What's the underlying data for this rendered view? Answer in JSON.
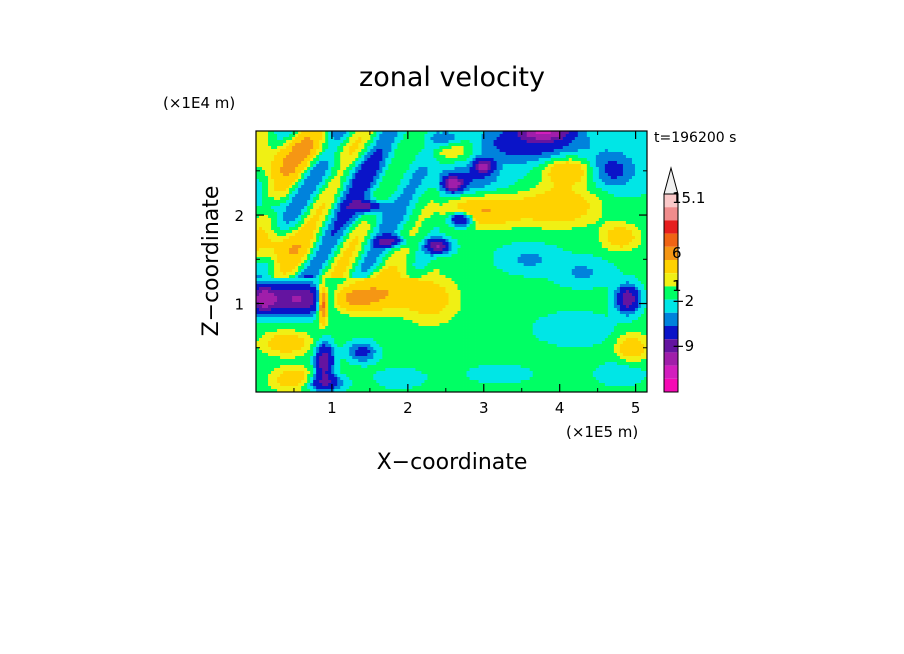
{
  "chart_data": {
    "type": "heatmap",
    "title": "zonal velocity",
    "xlabel": "X−coordinate",
    "ylabel": "Z−coordinate",
    "x_unit": "(×1E5 m)",
    "y_unit": "(×1E4 m)",
    "time_label": "t=196200 s",
    "xlim": [
      0,
      5.15
    ],
    "ylim": [
      0,
      2.95
    ],
    "x_ticks": [
      "1",
      "2",
      "3",
      "4",
      "5"
    ],
    "y_ticks": [
      "1",
      "2"
    ],
    "colorbar_labels": [
      "15.1",
      "6",
      "1",
      "−2",
      "−9"
    ],
    "colorbar_colors": [
      "#f0f0f0",
      "#fac8c8",
      "#f08c8c",
      "#e61e1e",
      "#f06414",
      "#f59614",
      "#ffd200",
      "#f0f014",
      "#00ff64",
      "#00e6e6",
      "#0082dc",
      "#0a14c8",
      "#6414a0",
      "#a01eaa",
      "#d21ebe",
      "#f50ab4"
    ],
    "legend_position": "right",
    "grid": false,
    "features": [
      {
        "x": 0.6,
        "z": 1.05,
        "sx": 0.55,
        "sz": 0.16,
        "u": -7
      },
      {
        "x": 0.1,
        "z": 1.05,
        "sx": 0.15,
        "sz": 0.15,
        "u": -6
      },
      {
        "x": 1.2,
        "z": 1.05,
        "sx": 0.4,
        "sz": 0.14,
        "u": 5.5
      },
      {
        "x": 0.88,
        "z": 1.0,
        "sx": 0.06,
        "sz": 0.2,
        "u": 8
      },
      {
        "x": 1.7,
        "z": 1.15,
        "sx": 0.45,
        "sz": 0.2,
        "u": 3
      },
      {
        "x": 2.3,
        "z": 1.05,
        "sx": 0.35,
        "sz": 0.25,
        "u": 2.5
      },
      {
        "x": 0.9,
        "z": 0.35,
        "sx": 0.12,
        "sz": 0.2,
        "u": -6
      },
      {
        "x": 1.4,
        "z": 0.45,
        "sx": 0.2,
        "sz": 0.12,
        "u": -3
      },
      {
        "x": 0.9,
        "z": 0.1,
        "sx": 0.25,
        "sz": 0.1,
        "u": -4
      },
      {
        "x": 1.9,
        "z": 0.15,
        "sx": 0.35,
        "sz": 0.12,
        "u": -1.5
      },
      {
        "x": 3.2,
        "z": 0.2,
        "sx": 0.5,
        "sz": 0.12,
        "u": -1.2
      },
      {
        "x": 0.4,
        "z": 0.55,
        "sx": 0.3,
        "sz": 0.12,
        "u": 3
      },
      {
        "x": 0.5,
        "z": 0.15,
        "sx": 0.25,
        "sz": 0.12,
        "u": 3
      },
      {
        "x": 0.3,
        "z": 1.65,
        "sx": 0.35,
        "sz": 0.2,
        "u": 3.5
      },
      {
        "x": 0.3,
        "z": 2.55,
        "sx": 0.35,
        "sz": 0.22,
        "u": 3
      },
      {
        "x": 0.7,
        "z": 2.75,
        "sx": 0.5,
        "sz": 0.2,
        "u": 3
      },
      {
        "x": 1.3,
        "z": 2.5,
        "sx": 0.5,
        "sz": 0.25,
        "u": -1.5
      },
      {
        "x": 1.5,
        "z": 2.05,
        "sx": 0.4,
        "sz": 0.2,
        "u": -1.5
      },
      {
        "x": 1.45,
        "z": 2.1,
        "sx": 0.2,
        "sz": 0.06,
        "u": -5
      },
      {
        "x": 1.75,
        "z": 1.7,
        "sx": 0.2,
        "sz": 0.06,
        "u": -4.5
      },
      {
        "x": 2.4,
        "z": 1.65,
        "sx": 0.15,
        "sz": 0.08,
        "u": -6
      },
      {
        "x": 2.7,
        "z": 1.95,
        "sx": 0.15,
        "sz": 0.08,
        "u": -6
      },
      {
        "x": 2.8,
        "z": 2.4,
        "sx": 0.45,
        "sz": 0.2,
        "u": -2
      },
      {
        "x": 2.6,
        "z": 2.35,
        "sx": 0.12,
        "sz": 0.08,
        "u": -7
      },
      {
        "x": 3.0,
        "z": 2.55,
        "sx": 0.12,
        "sz": 0.08,
        "u": -6
      },
      {
        "x": 3.6,
        "z": 2.8,
        "sx": 0.7,
        "sz": 0.2,
        "u": -3
      },
      {
        "x": 3.8,
        "z": 2.95,
        "sx": 0.3,
        "sz": 0.1,
        "u": -8
      },
      {
        "x": 2.6,
        "z": 2.75,
        "sx": 0.3,
        "sz": 0.15,
        "u": 2.5
      },
      {
        "x": 3.0,
        "z": 2.05,
        "sx": 0.5,
        "sz": 0.18,
        "u": 4
      },
      {
        "x": 4.0,
        "z": 2.1,
        "sx": 0.5,
        "sz": 0.22,
        "u": 3.5
      },
      {
        "x": 4.1,
        "z": 2.5,
        "sx": 0.3,
        "sz": 0.15,
        "u": 4
      },
      {
        "x": 4.7,
        "z": 2.5,
        "sx": 0.3,
        "sz": 0.2,
        "u": -2.5
      },
      {
        "x": 4.8,
        "z": 1.75,
        "sx": 0.25,
        "sz": 0.15,
        "u": 3
      },
      {
        "x": 3.6,
        "z": 1.5,
        "sx": 0.35,
        "sz": 0.15,
        "u": -1.5
      },
      {
        "x": 4.3,
        "z": 1.35,
        "sx": 0.35,
        "sz": 0.15,
        "u": -1.5
      },
      {
        "x": 4.9,
        "z": 1.05,
        "sx": 0.15,
        "sz": 0.15,
        "u": -6
      },
      {
        "x": 4.2,
        "z": 0.7,
        "sx": 0.55,
        "sz": 0.2,
        "u": -1.2
      },
      {
        "x": 4.95,
        "z": 0.5,
        "sx": 0.2,
        "sz": 0.15,
        "u": 3
      },
      {
        "x": 4.8,
        "z": 0.2,
        "sx": 0.35,
        "sz": 0.15,
        "u": -1.5
      },
      {
        "x": 2.5,
        "z": 2.85,
        "sx": 0.2,
        "sz": 0.1,
        "u": -2.5
      },
      {
        "x": 0.2,
        "z": 2.1,
        "sx": 0.15,
        "sz": 0.1,
        "u": -1.5
      }
    ]
  }
}
